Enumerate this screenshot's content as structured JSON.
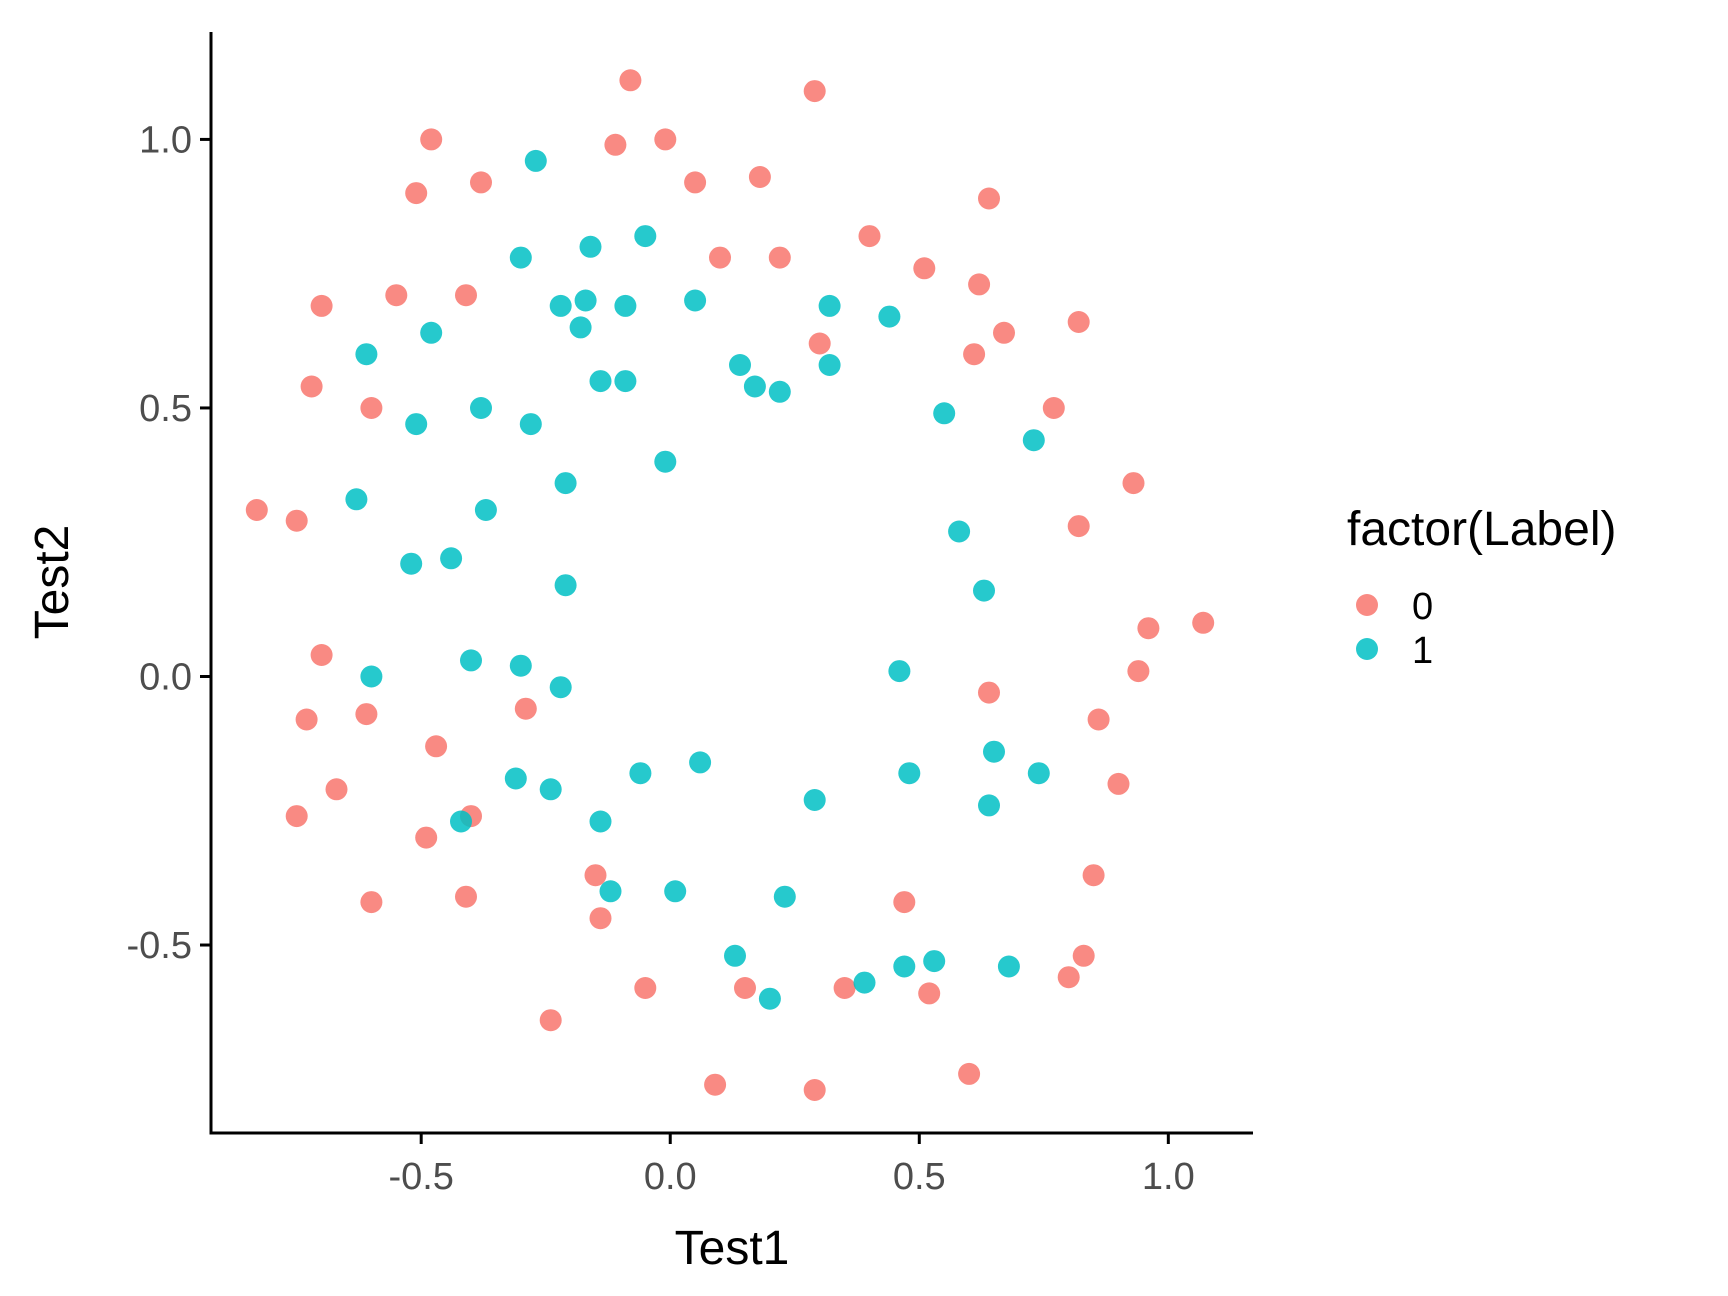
{
  "chart_data": {
    "type": "scatter",
    "xlabel": "Test1",
    "ylabel": "Test2",
    "xlim": [
      -0.92,
      1.17
    ],
    "ylim": [
      -0.85,
      1.2
    ],
    "x_ticks": [
      "-0.5",
      "0.0",
      "0.5",
      "1.0"
    ],
    "x_tick_values": [
      -0.5,
      0.0,
      0.5,
      1.0
    ],
    "y_ticks": [
      "-0.5",
      "0.0",
      "0.5",
      "1.0"
    ],
    "y_tick_values": [
      -0.5,
      0.0,
      0.5,
      1.0
    ],
    "grid": false,
    "legend": {
      "title": "factor(Label)",
      "position": "right"
    },
    "series": [
      {
        "name": "0",
        "color": "#F8766D",
        "points": [
          [
            -0.08,
            1.11
          ],
          [
            0.29,
            1.09
          ],
          [
            -0.48,
            1.0
          ],
          [
            -0.11,
            0.99
          ],
          [
            -0.01,
            1.0
          ],
          [
            -0.51,
            0.9
          ],
          [
            -0.38,
            0.92
          ],
          [
            0.05,
            0.92
          ],
          [
            0.18,
            0.93
          ],
          [
            0.64,
            0.89
          ],
          [
            0.1,
            0.78
          ],
          [
            0.22,
            0.78
          ],
          [
            0.4,
            0.82
          ],
          [
            0.51,
            0.76
          ],
          [
            0.62,
            0.73
          ],
          [
            -0.7,
            0.69
          ],
          [
            -0.55,
            0.71
          ],
          [
            -0.41,
            0.71
          ],
          [
            0.67,
            0.64
          ],
          [
            0.82,
            0.66
          ],
          [
            0.3,
            0.62
          ],
          [
            0.61,
            0.6
          ],
          [
            -0.72,
            0.54
          ],
          [
            -0.6,
            0.5
          ],
          [
            0.77,
            0.5
          ],
          [
            -0.83,
            0.31
          ],
          [
            -0.75,
            0.29
          ],
          [
            0.93,
            0.36
          ],
          [
            0.82,
            0.28
          ],
          [
            1.07,
            0.1
          ],
          [
            0.96,
            0.09
          ],
          [
            -0.7,
            0.04
          ],
          [
            0.94,
            0.01
          ],
          [
            -0.61,
            -0.07
          ],
          [
            -0.29,
            -0.06
          ],
          [
            0.64,
            -0.03
          ],
          [
            -0.73,
            -0.08
          ],
          [
            0.86,
            -0.08
          ],
          [
            -0.47,
            -0.13
          ],
          [
            -0.67,
            -0.21
          ],
          [
            0.9,
            -0.2
          ],
          [
            -0.75,
            -0.26
          ],
          [
            -0.4,
            -0.26
          ],
          [
            -0.49,
            -0.3
          ],
          [
            -0.15,
            -0.37
          ],
          [
            0.85,
            -0.37
          ],
          [
            -0.6,
            -0.42
          ],
          [
            -0.41,
            -0.41
          ],
          [
            0.47,
            -0.42
          ],
          [
            -0.14,
            -0.45
          ],
          [
            0.83,
            -0.52
          ],
          [
            0.8,
            -0.56
          ],
          [
            -0.05,
            -0.58
          ],
          [
            0.15,
            -0.58
          ],
          [
            0.35,
            -0.58
          ],
          [
            0.52,
            -0.59
          ],
          [
            -0.24,
            -0.64
          ],
          [
            0.09,
            -0.76
          ],
          [
            0.29,
            -0.77
          ],
          [
            0.6,
            -0.74
          ]
        ]
      },
      {
        "name": "1",
        "color": "#00BFC4",
        "points": [
          [
            -0.27,
            0.96
          ],
          [
            -0.3,
            0.78
          ],
          [
            -0.16,
            0.8
          ],
          [
            -0.05,
            0.82
          ],
          [
            -0.22,
            0.69
          ],
          [
            -0.17,
            0.7
          ],
          [
            -0.09,
            0.69
          ],
          [
            0.05,
            0.7
          ],
          [
            0.32,
            0.69
          ],
          [
            0.44,
            0.67
          ],
          [
            -0.48,
            0.64
          ],
          [
            -0.18,
            0.65
          ],
          [
            -0.61,
            0.6
          ],
          [
            0.14,
            0.58
          ],
          [
            0.32,
            0.58
          ],
          [
            -0.14,
            0.55
          ],
          [
            -0.09,
            0.55
          ],
          [
            0.17,
            0.54
          ],
          [
            0.22,
            0.53
          ],
          [
            -0.38,
            0.5
          ],
          [
            -0.51,
            0.47
          ],
          [
            -0.28,
            0.47
          ],
          [
            0.55,
            0.49
          ],
          [
            0.73,
            0.44
          ],
          [
            -0.01,
            0.4
          ],
          [
            -0.21,
            0.36
          ],
          [
            -0.63,
            0.33
          ],
          [
            -0.37,
            0.31
          ],
          [
            0.58,
            0.27
          ],
          [
            -0.52,
            0.21
          ],
          [
            -0.44,
            0.22
          ],
          [
            -0.21,
            0.17
          ],
          [
            0.63,
            0.16
          ],
          [
            -0.6,
            0.0
          ],
          [
            -0.4,
            0.03
          ],
          [
            -0.3,
            0.02
          ],
          [
            -0.22,
            -0.02
          ],
          [
            0.46,
            0.01
          ],
          [
            0.65,
            -0.14
          ],
          [
            -0.06,
            -0.18
          ],
          [
            0.06,
            -0.16
          ],
          [
            -0.31,
            -0.19
          ],
          [
            0.48,
            -0.18
          ],
          [
            0.74,
            -0.18
          ],
          [
            -0.24,
            -0.21
          ],
          [
            0.29,
            -0.23
          ],
          [
            0.64,
            -0.24
          ],
          [
            -0.42,
            -0.27
          ],
          [
            -0.14,
            -0.27
          ],
          [
            -0.12,
            -0.4
          ],
          [
            0.01,
            -0.4
          ],
          [
            0.23,
            -0.41
          ],
          [
            0.13,
            -0.52
          ],
          [
            0.47,
            -0.54
          ],
          [
            0.53,
            -0.53
          ],
          [
            0.68,
            -0.54
          ],
          [
            0.39,
            -0.57
          ],
          [
            0.2,
            -0.6
          ]
        ]
      }
    ]
  }
}
